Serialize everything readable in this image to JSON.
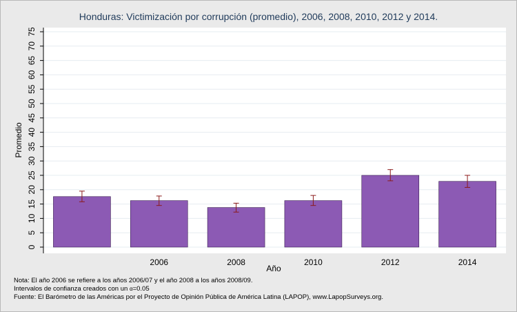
{
  "chart_data": {
    "type": "bar",
    "title": "Honduras: Victimización por corrupción (promedio), 2006, 2008, 2010, 2012 y 2014.",
    "xlabel": "Año",
    "ylabel": "Promedio",
    "categories": [
      "",
      "2006",
      "2008",
      "2010",
      "2012",
      "2014"
    ],
    "values": [
      17.6,
      16.2,
      13.8,
      16.2,
      25.0,
      22.9
    ],
    "error_low": [
      15.8,
      14.5,
      12.2,
      14.5,
      23.1,
      20.8
    ],
    "error_high": [
      19.5,
      17.8,
      15.3,
      18.0,
      27.0,
      25.0
    ],
    "ylim": [
      0,
      75
    ],
    "yticks": [
      "0",
      "5",
      "10",
      "15",
      "20",
      "25",
      "30",
      "35",
      "40",
      "45",
      "50",
      "55",
      "60",
      "65",
      "70",
      "75"
    ],
    "grid": true,
    "bar_color": "#8c5ab4",
    "error_color": "#8b1a1a"
  },
  "notes": {
    "line1": "Nota: El año 2006 se refiere a los años 2006/07 y el año 2008 a los años 2008/09.",
    "line2_prefix": "Intervalos de confianza creados con un ",
    "line2_symbol": "α",
    "line2_suffix": "=0.05",
    "line3": "Fuente: El Barómetro de las Américas por el Proyecto de Opinión Pública de América Latina (LAPOP), www.LapopSurveys.org."
  }
}
